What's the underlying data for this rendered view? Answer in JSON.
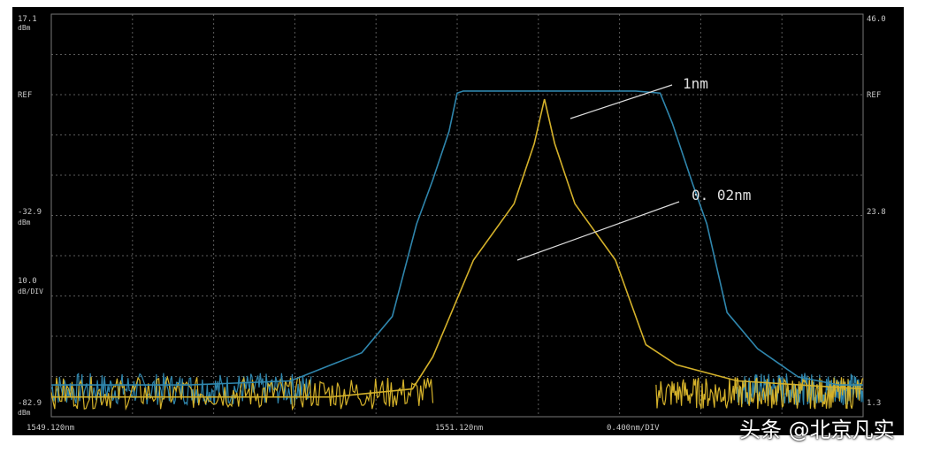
{
  "chart_data": {
    "type": "line",
    "left_axis": {
      "top_value": "17.1",
      "top_unit": "dBm",
      "ref_label": "REF",
      "mid_value": "-32.9",
      "mid_unit": "dBm",
      "scale_value": "10.0",
      "scale_unit": "dB/DIV",
      "bottom_value": "-82.9",
      "bottom_unit": "dBm",
      "ylim": [
        -82.9,
        17.1
      ]
    },
    "right_axis": {
      "top_value": "46.0",
      "ref_label": "REF",
      "mid_value": "23.8",
      "bottom_value": "1.3"
    },
    "x_axis": {
      "start_label": "1549.120nm",
      "center_label": "1551.120nm",
      "span_label": "0.400nm/DIV",
      "xlim": [
        1549.12,
        1553.12
      ]
    },
    "grid": true,
    "series": [
      {
        "name": "1nm",
        "color": "#2f86ad",
        "x": [
          1549.12,
          1549.8,
          1550.3,
          1550.5,
          1550.65,
          1550.8,
          1550.92,
          1551.0,
          1551.08,
          1551.12,
          1551.15,
          1551.5,
          1552.0,
          1552.12,
          1552.18,
          1552.28,
          1552.35,
          1552.45,
          1552.6,
          1552.8,
          1553.0,
          1553.12
        ],
        "y": [
          -75,
          -75,
          -74,
          -70,
          -67,
          -58,
          -35,
          -24,
          -12,
          -2.5,
          -2,
          -2,
          -2,
          -2.5,
          -10,
          -25,
          -35,
          -57,
          -66,
          -73,
          -75,
          -75
        ]
      },
      {
        "name": "0.02nm",
        "color": "#d4b12a",
        "x": [
          1549.12,
          1550.5,
          1550.9,
          1551.0,
          1551.2,
          1551.4,
          1551.5,
          1551.55,
          1551.6,
          1551.7,
          1551.9,
          1552.05,
          1552.2,
          1552.5,
          1553.12
        ],
        "y": [
          -78,
          -78,
          -76,
          -68,
          -44,
          -30,
          -15,
          -4,
          -15,
          -30,
          -44,
          -65,
          -70,
          -74,
          -76
        ]
      }
    ],
    "annotations": [
      {
        "text": "1nm",
        "target_series": "1nm"
      },
      {
        "text": "0. 02nm",
        "target_series": "0.02nm"
      }
    ]
  },
  "watermark": "头条 @北京凡实",
  "colors": {
    "background": "#000000",
    "grid": "#5a5a5a",
    "text": "#c8c8c8"
  }
}
